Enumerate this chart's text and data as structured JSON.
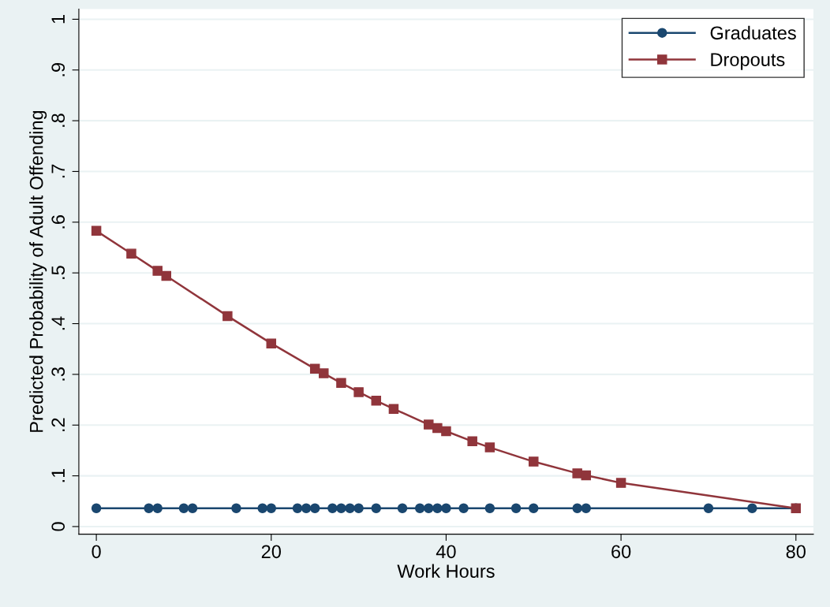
{
  "chart_data": {
    "type": "line",
    "xlabel": "Work Hours",
    "ylabel": "Predicted Probability of Adult Offending",
    "series": [
      {
        "name": "Graduates",
        "color": "#1a476f",
        "marker": "circle",
        "x": [
          0,
          6,
          7,
          10,
          11,
          16,
          19,
          20,
          23,
          24,
          25,
          27,
          28,
          29,
          30,
          32,
          35,
          37,
          38,
          39,
          40,
          42,
          45,
          48,
          50,
          55,
          56,
          70,
          75,
          80
        ],
        "values": [
          0.036,
          0.036,
          0.036,
          0.036,
          0.036,
          0.036,
          0.036,
          0.036,
          0.036,
          0.036,
          0.036,
          0.036,
          0.036,
          0.036,
          0.036,
          0.036,
          0.036,
          0.036,
          0.036,
          0.036,
          0.036,
          0.036,
          0.036,
          0.036,
          0.036,
          0.036,
          0.036,
          0.036,
          0.036,
          0.036
        ]
      },
      {
        "name": "Dropouts",
        "color": "#90353b",
        "marker": "square",
        "x": [
          0,
          4,
          7,
          8,
          15,
          20,
          25,
          26,
          28,
          30,
          32,
          34,
          38,
          39,
          40,
          43,
          45,
          50,
          55,
          56,
          60,
          80
        ],
        "values": [
          0.583,
          0.538,
          0.504,
          0.494,
          0.415,
          0.361,
          0.311,
          0.302,
          0.283,
          0.265,
          0.248,
          0.232,
          0.201,
          0.194,
          0.188,
          0.168,
          0.156,
          0.128,
          0.105,
          0.101,
          0.086,
          0.036
        ]
      }
    ],
    "xlim": [
      -2,
      82
    ],
    "xticks": [
      0,
      20,
      40,
      60,
      80
    ],
    "ylim": [
      -0.015,
      1.02
    ],
    "yticks": [
      0,
      {
        "value": 0.1,
        "label": ".1"
      },
      {
        "value": 0.2,
        "label": ".2"
      },
      {
        "value": 0.3,
        "label": ".3"
      },
      {
        "value": 0.4,
        "label": ".4"
      },
      {
        "value": 0.5,
        "label": ".5"
      },
      {
        "value": 0.6,
        "label": ".6"
      },
      {
        "value": 0.7,
        "label": ".7"
      },
      {
        "value": 0.8,
        "label": ".8"
      },
      {
        "value": 0.9,
        "label": ".9"
      },
      1
    ],
    "grid": "y",
    "legend": "top right",
    "line_style": "solid"
  }
}
